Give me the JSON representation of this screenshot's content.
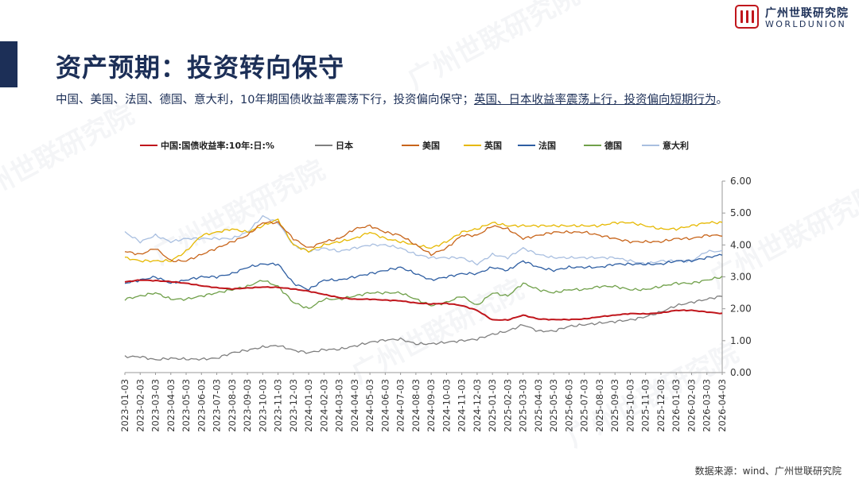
{
  "header": {
    "title": "资产预期：投资转向保守",
    "subtitle_part1": "中国、美国、法国、德国、意大利，10年期国债收益率震荡下行，投资偏向保守；",
    "subtitle_part2": "英国、日本收益率震荡上行，投资偏向短期行为",
    "subtitle_end": "。"
  },
  "logo": {
    "name_cn": "广州世联研究院",
    "name_en": "WORLDUNION",
    "color": "#c0161c"
  },
  "watermark_text": "广州世联研究院",
  "source": "数据来源：wind、广州世联研究院",
  "chart_data": {
    "type": "line",
    "title": "",
    "xlabel": "",
    "ylabel": "",
    "ylim": [
      0,
      6
    ],
    "yticks": [
      "0.00",
      "1.00",
      "2.00",
      "3.00",
      "4.00",
      "5.00",
      "6.00"
    ],
    "y_axis_side": "right",
    "legend_position": "top",
    "grid": false,
    "categories": [
      "2023-01-03",
      "2023-02-03",
      "2023-03-03",
      "2023-04-03",
      "2023-05-03",
      "2023-06-03",
      "2023-07-03",
      "2023-08-03",
      "2023-09-03",
      "2023-10-03",
      "2023-11-03",
      "2023-12-03",
      "2024-01-03",
      "2024-02-03",
      "2024-03-03",
      "2024-04-03",
      "2024-05-03",
      "2024-06-03",
      "2024-07-03",
      "2024-08-03",
      "2024-09-03",
      "2024-10-03",
      "2024-11-03",
      "2024-12-03",
      "2025-01-03",
      "2025-02-03",
      "2025-03-03",
      "2025-04-03",
      "2025-05-03",
      "2025-06-03",
      "2025-07-03",
      "2025-08-03",
      "2025-09-03",
      "2025-10-03",
      "2025-11-03",
      "2025-12-03",
      "2026-01-03",
      "2026-02-03",
      "2026-03-03",
      "2026-04-03"
    ],
    "series": [
      {
        "name": "中国:国债收益率:10年:日:%",
        "color": "#c0161c",
        "width": 2.0,
        "values": [
          2.84,
          2.9,
          2.88,
          2.85,
          2.8,
          2.72,
          2.66,
          2.62,
          2.65,
          2.68,
          2.67,
          2.62,
          2.55,
          2.45,
          2.35,
          2.3,
          2.3,
          2.27,
          2.25,
          2.18,
          2.15,
          2.17,
          2.1,
          1.95,
          1.65,
          1.65,
          1.8,
          1.68,
          1.66,
          1.66,
          1.68,
          1.75,
          1.8,
          1.85,
          1.84,
          1.87,
          1.95,
          1.95,
          1.9,
          1.85
        ]
      },
      {
        "name": "日本",
        "color": "#7f7f7f",
        "width": 1.3,
        "values": [
          0.5,
          0.5,
          0.4,
          0.45,
          0.42,
          0.42,
          0.45,
          0.62,
          0.7,
          0.8,
          0.85,
          0.7,
          0.62,
          0.72,
          0.73,
          0.83,
          0.95,
          1.02,
          1.05,
          0.9,
          0.9,
          0.95,
          1.0,
          1.05,
          1.2,
          1.3,
          1.5,
          1.3,
          1.3,
          1.45,
          1.5,
          1.55,
          1.6,
          1.65,
          1.75,
          1.9,
          2.1,
          2.2,
          2.3,
          2.4
        ]
      },
      {
        "name": "美国",
        "color": "#c8651b",
        "width": 1.3,
        "values": [
          3.8,
          3.7,
          3.9,
          3.5,
          3.5,
          3.7,
          3.9,
          4.1,
          4.3,
          4.7,
          4.7,
          4.2,
          3.9,
          4.1,
          4.2,
          4.5,
          4.6,
          4.4,
          4.3,
          4.0,
          3.7,
          3.9,
          4.3,
          4.3,
          4.6,
          4.5,
          4.2,
          4.3,
          4.4,
          4.4,
          4.4,
          4.3,
          4.2,
          4.1,
          4.1,
          4.1,
          4.2,
          4.2,
          4.3,
          4.3
        ]
      },
      {
        "name": "英国",
        "color": "#e6b800",
        "width": 1.3,
        "values": [
          3.6,
          3.5,
          3.5,
          3.5,
          3.8,
          4.3,
          4.4,
          4.5,
          4.4,
          4.6,
          4.8,
          4.0,
          3.8,
          4.0,
          4.1,
          4.2,
          4.4,
          4.2,
          4.1,
          4.0,
          3.9,
          4.1,
          4.4,
          4.5,
          4.7,
          4.6,
          4.6,
          4.6,
          4.6,
          4.6,
          4.6,
          4.6,
          4.7,
          4.7,
          4.6,
          4.5,
          4.5,
          4.6,
          4.7,
          4.7
        ]
      },
      {
        "name": "法国",
        "color": "#2e5ea2",
        "width": 1.3,
        "values": [
          2.8,
          2.9,
          3.0,
          2.8,
          2.9,
          3.0,
          3.0,
          3.1,
          3.3,
          3.4,
          3.4,
          2.8,
          2.6,
          2.9,
          2.9,
          3.0,
          3.1,
          3.2,
          3.3,
          3.1,
          2.9,
          3.0,
          3.1,
          3.1,
          3.3,
          3.2,
          3.5,
          3.3,
          3.2,
          3.3,
          3.3,
          3.3,
          3.4,
          3.4,
          3.4,
          3.4,
          3.5,
          3.5,
          3.6,
          3.7
        ]
      },
      {
        "name": "德国",
        "color": "#70a04a",
        "width": 1.3,
        "values": [
          2.3,
          2.4,
          2.5,
          2.3,
          2.3,
          2.4,
          2.5,
          2.6,
          2.7,
          2.9,
          2.7,
          2.2,
          2.0,
          2.3,
          2.3,
          2.4,
          2.5,
          2.5,
          2.5,
          2.3,
          2.1,
          2.2,
          2.4,
          2.1,
          2.5,
          2.4,
          2.8,
          2.6,
          2.5,
          2.6,
          2.6,
          2.7,
          2.7,
          2.6,
          2.6,
          2.7,
          2.8,
          2.8,
          2.9,
          3.0
        ]
      },
      {
        "name": "意大利",
        "color": "#a9bfe0",
        "width": 1.3,
        "values": [
          4.4,
          4.1,
          4.3,
          4.1,
          4.2,
          4.2,
          4.2,
          4.2,
          4.4,
          4.9,
          4.7,
          4.0,
          3.8,
          3.9,
          3.8,
          3.9,
          4.0,
          4.0,
          3.9,
          3.7,
          3.6,
          3.6,
          3.6,
          3.4,
          3.7,
          3.6,
          3.9,
          3.7,
          3.6,
          3.6,
          3.6,
          3.6,
          3.6,
          3.5,
          3.4,
          3.5,
          3.5,
          3.5,
          3.8,
          3.8
        ]
      }
    ]
  }
}
